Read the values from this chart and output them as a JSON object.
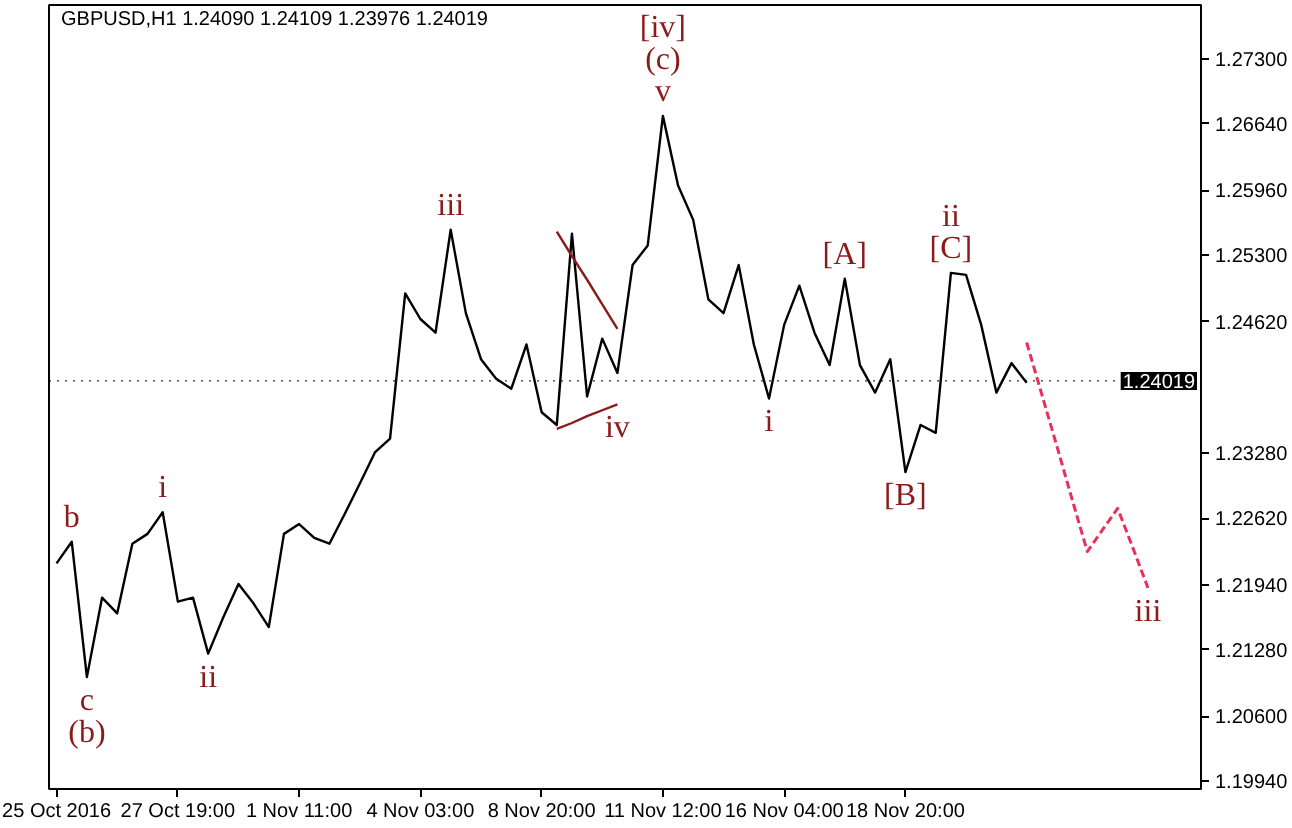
{
  "chart_data": {
    "type": "line",
    "title": "GBPUSD,H1  1.24090 1.24109 1.23976 1.24019",
    "categories": [
      "25 Oct 2016",
      null,
      null,
      null,
      null,
      null,
      null,
      null,
      "27 Oct 19:00",
      null,
      null,
      null,
      null,
      null,
      null,
      null,
      "1 Nov 11:00",
      null,
      null,
      null,
      null,
      null,
      null,
      null,
      "4 Nov 03:00",
      null,
      null,
      null,
      null,
      null,
      null,
      null,
      "8 Nov 20:00",
      null,
      null,
      null,
      null,
      null,
      null,
      null,
      "11 Nov 12:00",
      null,
      null,
      null,
      null,
      null,
      null,
      null,
      "16 Nov 04:00",
      null,
      null,
      null,
      null,
      null,
      null,
      null,
      "18 Nov 20:00",
      null,
      null,
      null,
      null,
      null,
      null,
      null,
      null,
      null,
      null,
      null,
      null,
      null,
      null,
      null,
      null,
      null,
      null,
      null
    ],
    "ylim": [
      1.1986,
      1.2785
    ],
    "yticks": [
      {
        "value": 1.273,
        "label": "1.27300"
      },
      {
        "value": 1.2664,
        "label": "1.26640"
      },
      {
        "value": 1.2596,
        "label": "1.25960"
      },
      {
        "value": 1.253,
        "label": "1.25300"
      },
      {
        "value": 1.2462,
        "label": "1.24620"
      },
      {
        "value": 1.2328,
        "label": "1.23280"
      },
      {
        "value": 1.2262,
        "label": "1.22620"
      },
      {
        "value": 1.2194,
        "label": "1.21940"
      },
      {
        "value": 1.2128,
        "label": "1.21280"
      },
      {
        "value": 1.206,
        "label": "1.20600"
      },
      {
        "value": 1.1994,
        "label": "1.19940"
      }
    ],
    "grid": false,
    "series": [
      {
        "color": "#000000",
        "line_style": "solid",
        "values": [
          1.2216,
          1.2238,
          1.21,
          1.2181,
          1.2165,
          1.2236,
          1.2246,
          1.2268,
          1.2177,
          1.2181,
          1.2124,
          1.2161,
          1.2195,
          1.2175,
          1.2151,
          1.2246,
          1.2256,
          1.2242,
          1.2236,
          1.2266,
          1.2297,
          1.2329,
          1.2343,
          1.2491,
          1.2465,
          1.2451,
          1.2556,
          1.2471,
          1.2424,
          1.2404,
          1.2394,
          1.2439,
          1.237,
          1.2357,
          1.2552,
          1.2386,
          1.2445,
          1.241,
          1.252,
          1.254,
          1.2672,
          1.2601,
          1.2566,
          1.2485,
          1.2471,
          1.252,
          1.2439,
          1.2384,
          1.2459,
          1.2499,
          1.2451,
          1.2418,
          1.2506,
          1.2418,
          1.239,
          1.2424,
          1.2309,
          1.2357,
          1.2349,
          1.2512,
          1.251,
          1.2459,
          1.239,
          1.242,
          1.24,
          null,
          null,
          null,
          null,
          null,
          null,
          null,
          null,
          null,
          null,
          null
        ]
      },
      {
        "color": "#8b1a1a",
        "line_style": "solid",
        "values": [
          null,
          null,
          null,
          null,
          null,
          null,
          null,
          null,
          null,
          null,
          null,
          null,
          null,
          null,
          null,
          null,
          null,
          null,
          null,
          null,
          null,
          null,
          null,
          null,
          null,
          null,
          null,
          null,
          null,
          null,
          null,
          null,
          null,
          1.2554,
          1.2529,
          1.2505,
          1.248,
          1.2455,
          null,
          null,
          null,
          null,
          null,
          null,
          null,
          null,
          null,
          null,
          null,
          null,
          null,
          null,
          null,
          null,
          null,
          null,
          null,
          null,
          null,
          null,
          null,
          null,
          null,
          null,
          null,
          null,
          null,
          null,
          null,
          null,
          null,
          null,
          null,
          null,
          null,
          null
        ]
      },
      {
        "color": "#8b1a1a",
        "line_style": "solid",
        "values": [
          null,
          null,
          null,
          null,
          null,
          null,
          null,
          null,
          null,
          null,
          null,
          null,
          null,
          null,
          null,
          null,
          null,
          null,
          null,
          null,
          null,
          null,
          null,
          null,
          null,
          null,
          null,
          null,
          null,
          null,
          null,
          null,
          null,
          1.2353,
          1.2359,
          1.2366,
          1.2372,
          1.2378,
          null,
          null,
          null,
          null,
          null,
          null,
          null,
          null,
          null,
          null,
          null,
          null,
          null,
          null,
          null,
          null,
          null,
          null,
          null,
          null,
          null,
          null,
          null,
          null,
          null,
          null,
          null,
          null,
          null,
          null,
          null,
          null,
          null,
          null,
          null,
          null,
          null,
          null
        ]
      },
      {
        "color": "#e8305a",
        "line_style": "dashed",
        "values": [
          null,
          null,
          null,
          null,
          null,
          null,
          null,
          null,
          null,
          null,
          null,
          null,
          null,
          null,
          null,
          null,
          null,
          null,
          null,
          null,
          null,
          null,
          null,
          null,
          null,
          null,
          null,
          null,
          null,
          null,
          null,
          null,
          null,
          null,
          null,
          null,
          null,
          null,
          null,
          null,
          null,
          null,
          null,
          null,
          null,
          null,
          null,
          null,
          null,
          null,
          null,
          null,
          null,
          null,
          null,
          null,
          null,
          null,
          null,
          null,
          null,
          null,
          null,
          null,
          1.2441,
          1.2388,
          1.2335,
          1.2281,
          1.2228,
          1.225,
          1.2272,
          1.2232,
          1.2191,
          null,
          null,
          null
        ]
      }
    ],
    "ref_lines": [
      {
        "axis": "y",
        "value": 1.24019,
        "label": "1.24019",
        "color": "#000000"
      }
    ],
    "annotations": [
      {
        "text": "b",
        "y": 1.2238
      },
      {
        "text": "c",
        "y": 1.21
      },
      {
        "text": "(b)",
        "y": 1.21
      },
      {
        "text": "i",
        "y": 1.2268
      },
      {
        "text": "ii",
        "y": 1.2124
      },
      {
        "text": "iii",
        "y": 1.2556
      },
      {
        "text": "v",
        "y": 1.2672
      },
      {
        "text": "(c)",
        "y": 1.2672
      },
      {
        "text": "[iv]",
        "y": 1.2672
      },
      {
        "text": "iv",
        "y": 1.2378
      },
      {
        "text": "i",
        "y": 1.2384
      },
      {
        "text": "[A]",
        "y": 1.2506
      },
      {
        "text": "[B]",
        "y": 1.2309
      },
      {
        "text": "[C]",
        "y": 1.2512
      },
      {
        "text": "ii",
        "y": 1.2512
      },
      {
        "text": "iii",
        "y": 1.2191
      }
    ]
  }
}
